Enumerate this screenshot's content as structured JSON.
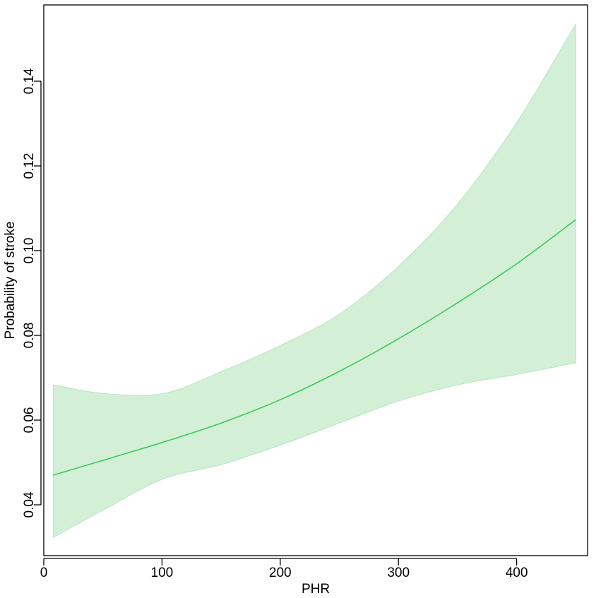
{
  "chart_data": {
    "type": "line",
    "title": "",
    "xlabel": "PHR",
    "ylabel": "Probability of stroke",
    "xlim": [
      0,
      460
    ],
    "ylim": [
      0.028,
      0.158
    ],
    "xticks": [
      0,
      100,
      200,
      300,
      400
    ],
    "yticks": [
      0.04,
      0.06,
      0.08,
      0.1,
      0.12,
      0.14
    ],
    "ytick_labels": [
      "0.04",
      "0.06",
      "0.08",
      "0.10",
      "0.12",
      "0.14"
    ],
    "grid": false,
    "legend": "none",
    "series": [
      {
        "x": [
          8,
          50,
          100,
          150,
          200,
          250,
          300,
          350,
          400,
          450
        ],
        "y": [
          0.047,
          0.0505,
          0.0547,
          0.0593,
          0.0648,
          0.0715,
          0.0792,
          0.0877,
          0.0969,
          0.1073
        ],
        "lower": [
          0.0323,
          0.0387,
          0.046,
          0.0495,
          0.0541,
          0.0593,
          0.0645,
          0.0683,
          0.0708,
          0.0735
        ],
        "upper": [
          0.0683,
          0.0663,
          0.0662,
          0.0714,
          0.0776,
          0.085,
          0.0963,
          0.111,
          0.1302,
          0.1535
        ]
      }
    ],
    "colors": {
      "line": "#3cc85a",
      "band": "#d3f0d7",
      "band_edge": "#b4e6bd"
    }
  }
}
